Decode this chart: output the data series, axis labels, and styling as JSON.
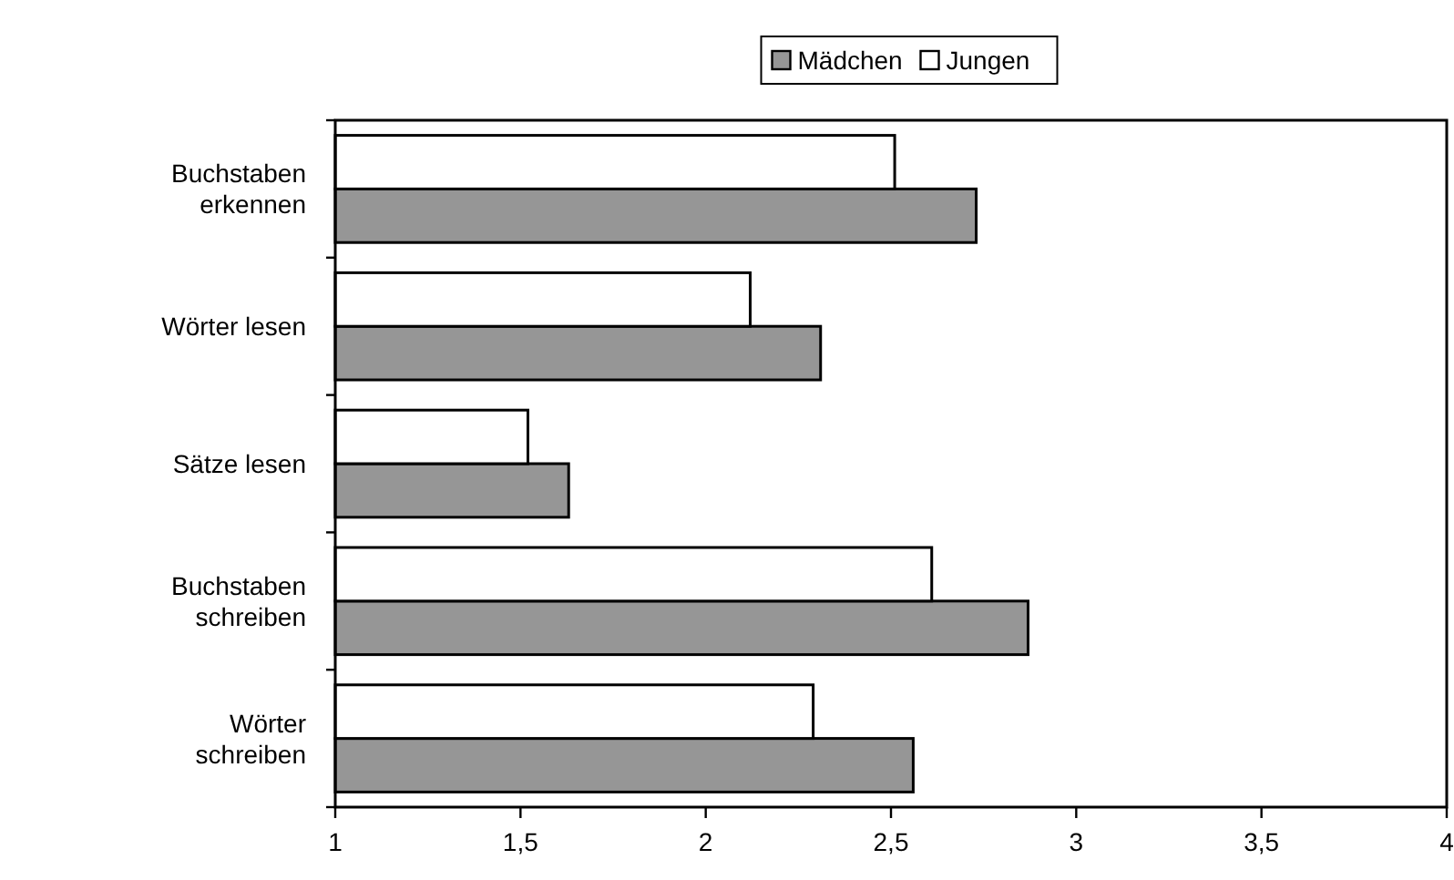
{
  "chart_data": {
    "type": "bar",
    "orientation": "horizontal",
    "categories": [
      "Buchstaben erkennen",
      "Wörter lesen",
      "Sätze lesen",
      "Buchstaben schreiben",
      "Wörter schreiben"
    ],
    "series": [
      {
        "name": "Mädchen",
        "color": "#969696",
        "values": [
          2.73,
          2.31,
          1.63,
          2.87,
          2.56
        ]
      },
      {
        "name": "Jungen",
        "color": "#ffffff",
        "values": [
          2.51,
          2.12,
          1.52,
          2.61,
          2.29
        ]
      }
    ],
    "xlim": [
      1,
      4
    ],
    "xticks": [
      1,
      {
        "value": 1.5,
        "label": "1,5"
      },
      2,
      {
        "value": 2.5,
        "label": "2,5"
      },
      3,
      {
        "value": 3.5,
        "label": "3,5"
      },
      4
    ],
    "grid": false,
    "legend": "top"
  }
}
